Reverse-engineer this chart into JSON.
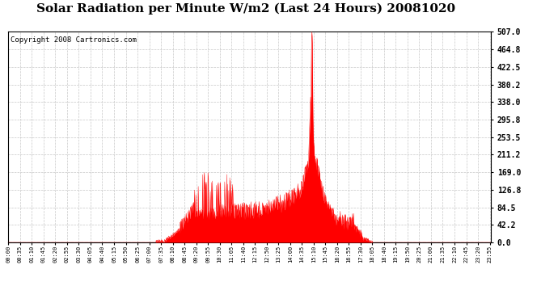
{
  "title": "Solar Radiation per Minute W/m2 (Last 24 Hours) 20081020",
  "copyright": "Copyright 2008 Cartronics.com",
  "yticks": [
    0.0,
    42.2,
    84.5,
    126.8,
    169.0,
    211.2,
    253.5,
    295.8,
    338.0,
    380.2,
    422.5,
    464.8,
    507.0
  ],
  "ymax": 507.0,
  "ymin": 0.0,
  "line_color": "#FF0000",
  "fill_color": "#FF0000",
  "dashed_line_color": "#FF0000",
  "background_color": "#FFFFFF",
  "grid_color": "#C8C8C8",
  "title_fontsize": 11,
  "copyright_fontsize": 6.5,
  "tick_step_minutes": 35,
  "total_minutes": 1440
}
